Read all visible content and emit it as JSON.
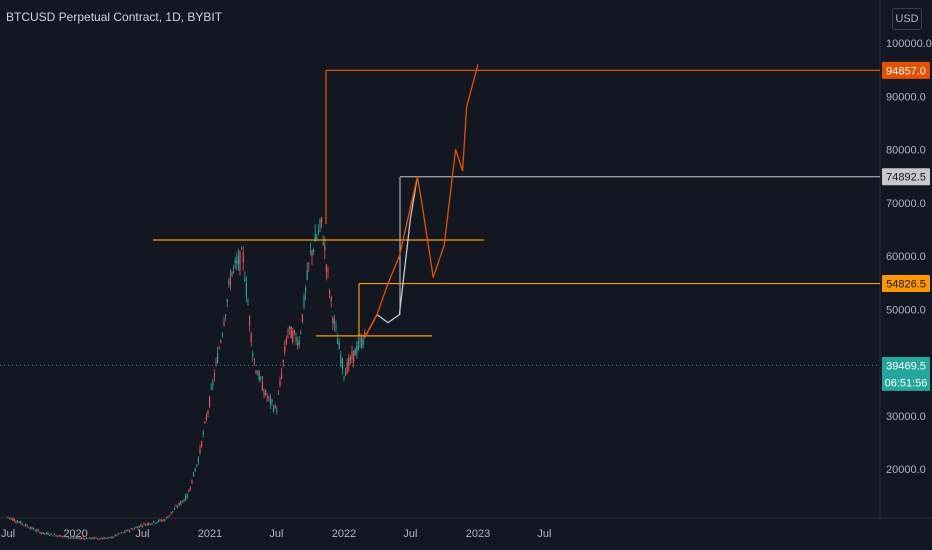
{
  "header": {
    "title": "BTCUSD Perpetual Contract, 1D, BYBIT",
    "currency": "USD"
  },
  "colors": {
    "background": "#131722",
    "up": "#26a69a",
    "down": "#ef5350",
    "projection_orange": "#e65100",
    "projection_gray": "#c8c8c8",
    "level_orange": "#ff9800",
    "current_price": "#26a69a"
  },
  "chart_data": {
    "type": "line",
    "title": "BTCUSD Perpetual Contract, 1D, BYBIT",
    "y_scale": "linear",
    "ylim": [
      10000,
      100000
    ],
    "x_tick_labels": [
      "Jul",
      "2020",
      "Jul",
      "2021",
      "Jul",
      "2022",
      "Jul",
      "2023",
      "Jul"
    ],
    "y_tick_labels": [
      "100000.0",
      "90000.0",
      "80000.0",
      "70000.0",
      "60000.0",
      "50000.0",
      "30000.0",
      "20000.0"
    ],
    "price_series": {
      "name": "BTCUSD",
      "x": [
        "2019-07",
        "2019-10",
        "2020-01",
        "2020-04",
        "2020-07",
        "2020-09",
        "2020-11",
        "2020-12",
        "2021-01",
        "2021-02",
        "2021-03",
        "2021-04",
        "2021-05",
        "2021-06",
        "2021-07",
        "2021-08",
        "2021-09",
        "2021-10",
        "2021-11",
        "2021-12",
        "2022-01",
        "2022-02",
        "2022-03"
      ],
      "y": [
        11000,
        8000,
        7000,
        7000,
        9500,
        10500,
        15000,
        22000,
        33000,
        45000,
        57000,
        60000,
        40000,
        34000,
        31000,
        46000,
        44000,
        60000,
        66000,
        49000,
        38000,
        42000,
        45000
      ]
    },
    "projection_gray": {
      "x": [
        "2022-03",
        "2022-04",
        "2022-05",
        "2022-06",
        "2022-07",
        "2022-07-20"
      ],
      "y": [
        45000,
        49000,
        47500,
        49000,
        67000,
        74892.5
      ]
    },
    "projection_orange": {
      "x": [
        "2022-03",
        "2022-04",
        "2022-05",
        "2022-06",
        "2022-07-20",
        "2022-08",
        "2022-09",
        "2022-10",
        "2022-11",
        "2022-11-20",
        "2022-12",
        "2023-01"
      ],
      "y": [
        45000,
        49000,
        54826.5,
        60000,
        74892.5,
        70000,
        56000,
        62000,
        80000,
        76000,
        88000,
        96000
      ]
    },
    "horizontal_levels": [
      {
        "label": "94857.0",
        "value": 94857.0,
        "color": "#e65100"
      },
      {
        "label": "74892.5",
        "value": 74892.5,
        "color": "#c8c8c8"
      },
      {
        "label": "54826.5",
        "value": 54826.5,
        "color": "#ff9800"
      },
      {
        "value": 63000,
        "color": "#ff9800"
      },
      {
        "value": 45000,
        "color": "#ff9800"
      }
    ],
    "current_price": {
      "label": "39469.5",
      "value": 39469.5,
      "countdown": "06:51:56"
    }
  }
}
